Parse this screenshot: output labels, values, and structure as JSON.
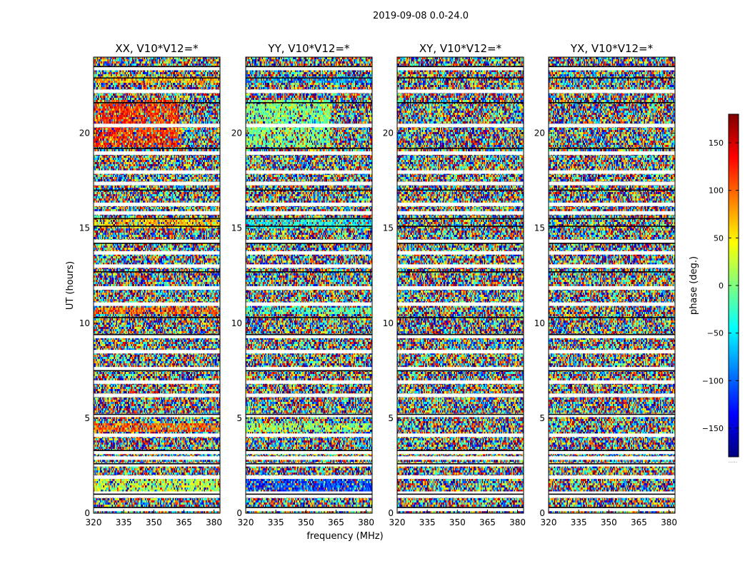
{
  "figure": {
    "suptitle": "2019-09-08 0.0-24.0",
    "xlabel": "frequency (MHz)",
    "ylabel": "UT (hours)"
  },
  "colorbar": {
    "label": "phase (deg.)",
    "range": [
      -180,
      180
    ],
    "ticks": [
      150,
      100,
      50,
      0,
      -50,
      -100,
      -150
    ],
    "tick_labels": [
      "150",
      "100",
      "50",
      "0",
      "−50",
      "−100",
      "−150"
    ],
    "colormap": [
      "#00007f",
      "#0000ff",
      "#007fff",
      "#00ffff",
      "#7fff7f",
      "#ffff00",
      "#ff7f00",
      "#ff0000",
      "#7f0000"
    ],
    "footnote": "....."
  },
  "chart_data": {
    "type": "heatmap",
    "xlim": [
      320,
      383
    ],
    "ylim": [
      0,
      24
    ],
    "x_ticks": [
      320,
      335,
      350,
      365,
      380
    ],
    "y_ticks": [
      0,
      5,
      10,
      15,
      20
    ],
    "panels": [
      {
        "title": "XX, V10*V12=*",
        "bias": [
          {
            "t0": 22.6,
            "t1": 23.0,
            "phase": 70,
            "x_end": 383
          },
          {
            "t0": 19.3,
            "t1": 21.8,
            "phase": 120,
            "x_end": 362
          },
          {
            "t0": 15.0,
            "t1": 15.6,
            "phase": 60,
            "x_end": 383
          },
          {
            "t0": 10.5,
            "t1": 10.8,
            "phase": 100,
            "x_end": 383
          },
          {
            "t0": 4.3,
            "t1": 4.7,
            "phase": 100,
            "x_end": 383
          },
          {
            "t0": 1.1,
            "t1": 1.8,
            "phase": 20,
            "x_end": 383
          }
        ]
      },
      {
        "title": "YY, V10*V12=*",
        "bias": [
          {
            "t0": 22.6,
            "t1": 23.0,
            "phase": -80,
            "x_end": 383
          },
          {
            "t0": 19.3,
            "t1": 21.8,
            "phase": 0,
            "x_end": 362
          },
          {
            "t0": 15.0,
            "t1": 15.6,
            "phase": -40,
            "x_end": 383
          },
          {
            "t0": 10.5,
            "t1": 10.8,
            "phase": -20,
            "x_end": 383
          },
          {
            "t0": 4.3,
            "t1": 4.7,
            "phase": 10,
            "x_end": 383
          },
          {
            "t0": 1.1,
            "t1": 1.8,
            "phase": -110,
            "x_end": 383
          }
        ]
      },
      {
        "title": "XY, V10*V12=*",
        "bias": []
      },
      {
        "title": "YX, V10*V12=*",
        "bias": []
      }
    ],
    "white_gaps_hours": [
      0.2,
      0.9,
      1.05,
      1.9,
      2.55,
      2.9,
      3.2,
      4.1,
      5.15,
      6.2,
      6.9,
      7.6,
      8.5,
      9.3,
      11.0,
      11.85,
      13.0,
      13.7,
      14.3,
      15.8,
      16.25,
      17.35,
      17.95,
      18.95,
      20.4,
      22.2,
      23.4
    ],
    "black_lines_hours": [
      0.3,
      1.0,
      2.6,
      3.3,
      5.2,
      7.5,
      9.4,
      10.3,
      12.7,
      14.2,
      15.1,
      15.5,
      17.0,
      19.2,
      21.6,
      22.9,
      23.5
    ]
  }
}
